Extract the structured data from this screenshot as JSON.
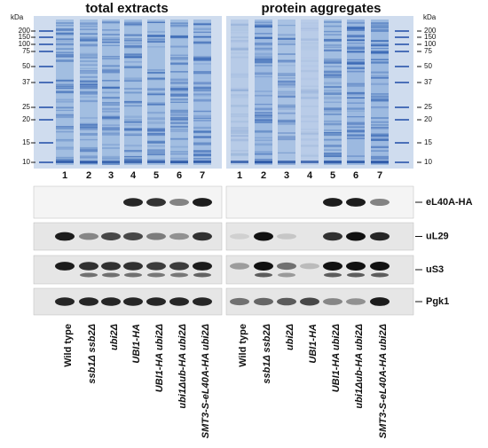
{
  "panels": [
    {
      "title": "total extracts"
    },
    {
      "title": "protein aggregates"
    }
  ],
  "kda_label": "kDa",
  "markers": [
    "200",
    "150",
    "100",
    "75",
    "50",
    "37",
    "25",
    "20",
    "15",
    "10"
  ],
  "lanes": [
    "1",
    "2",
    "3",
    "4",
    "5",
    "6",
    "7"
  ],
  "blots": [
    "eL40A-HA",
    "uL29",
    "uS3",
    "Pgk1"
  ],
  "strains": [
    "Wild type",
    "ssb1Δ ssb2Δ",
    "ubi2Δ",
    "UBI1-HA",
    "UBI1-HA ubi2Δ",
    "ubi1Δub-HA ubi2Δ",
    "SMT3-S-eL40A-HA ubi2Δ"
  ]
}
